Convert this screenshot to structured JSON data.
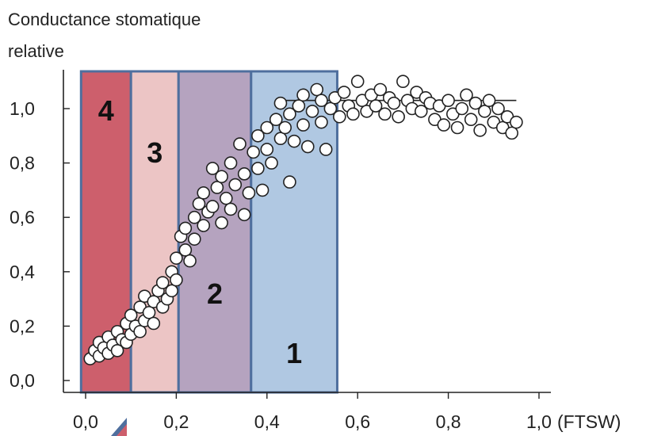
{
  "chart_data": {
    "type": "scatter",
    "title_lines": [
      "Conductance stomatique",
      "relative"
    ],
    "xlabel": "(FTSW)",
    "ylabel": "",
    "xlim": [
      0.0,
      1.0
    ],
    "ylim": [
      0.0,
      1.1
    ],
    "x_ticks": [
      {
        "value": 0.0,
        "label": "0,0"
      },
      {
        "value": 0.2,
        "label": "0,2"
      },
      {
        "value": 0.4,
        "label": "0,4"
      },
      {
        "value": 0.6,
        "label": "0,6"
      },
      {
        "value": 0.8,
        "label": "0,8"
      },
      {
        "value": 1.0,
        "label": "1,0"
      }
    ],
    "y_ticks": [
      {
        "value": 0.0,
        "label": "0,0"
      },
      {
        "value": 0.2,
        "label": "0,2"
      },
      {
        "value": 0.4,
        "label": "0,4"
      },
      {
        "value": 0.6,
        "label": "0,6"
      },
      {
        "value": 0.8,
        "label": "0,8"
      },
      {
        "value": 1.0,
        "label": "1,0"
      }
    ],
    "grid": false,
    "zones": [
      {
        "label": "4",
        "x_from": -0.01,
        "x_to": 0.1,
        "color": "#cd5f6c"
      },
      {
        "label": "3",
        "x_from": 0.1,
        "x_to": 0.205,
        "color": "#ecc5c5"
      },
      {
        "label": "2",
        "x_from": 0.205,
        "x_to": 0.365,
        "color": "#b5a3bf"
      },
      {
        "label": "1",
        "x_from": 0.365,
        "x_to": 0.555,
        "color": "#b0c8e2"
      }
    ],
    "zone_border_color": "#4f6f9e",
    "plateau_line": {
      "x_from": 0.42,
      "x_to": 0.95,
      "y": 1.03
    },
    "points": [
      {
        "x": 0.01,
        "y": 0.08
      },
      {
        "x": 0.02,
        "y": 0.11
      },
      {
        "x": 0.03,
        "y": 0.09
      },
      {
        "x": 0.03,
        "y": 0.14
      },
      {
        "x": 0.04,
        "y": 0.12
      },
      {
        "x": 0.05,
        "y": 0.1
      },
      {
        "x": 0.05,
        "y": 0.16
      },
      {
        "x": 0.06,
        "y": 0.13
      },
      {
        "x": 0.07,
        "y": 0.18
      },
      {
        "x": 0.07,
        "y": 0.11
      },
      {
        "x": 0.08,
        "y": 0.15
      },
      {
        "x": 0.09,
        "y": 0.21
      },
      {
        "x": 0.09,
        "y": 0.14
      },
      {
        "x": 0.1,
        "y": 0.24
      },
      {
        "x": 0.1,
        "y": 0.17
      },
      {
        "x": 0.11,
        "y": 0.2
      },
      {
        "x": 0.12,
        "y": 0.27
      },
      {
        "x": 0.12,
        "y": 0.18
      },
      {
        "x": 0.13,
        "y": 0.31
      },
      {
        "x": 0.13,
        "y": 0.22
      },
      {
        "x": 0.14,
        "y": 0.25
      },
      {
        "x": 0.15,
        "y": 0.29
      },
      {
        "x": 0.15,
        "y": 0.21
      },
      {
        "x": 0.16,
        "y": 0.33
      },
      {
        "x": 0.17,
        "y": 0.27
      },
      {
        "x": 0.17,
        "y": 0.36
      },
      {
        "x": 0.18,
        "y": 0.3
      },
      {
        "x": 0.19,
        "y": 0.4
      },
      {
        "x": 0.19,
        "y": 0.33
      },
      {
        "x": 0.2,
        "y": 0.45
      },
      {
        "x": 0.2,
        "y": 0.37
      },
      {
        "x": 0.21,
        "y": 0.53
      },
      {
        "x": 0.22,
        "y": 0.48
      },
      {
        "x": 0.22,
        "y": 0.56
      },
      {
        "x": 0.23,
        "y": 0.44
      },
      {
        "x": 0.24,
        "y": 0.6
      },
      {
        "x": 0.24,
        "y": 0.52
      },
      {
        "x": 0.25,
        "y": 0.65
      },
      {
        "x": 0.26,
        "y": 0.57
      },
      {
        "x": 0.26,
        "y": 0.69
      },
      {
        "x": 0.27,
        "y": 0.62
      },
      {
        "x": 0.28,
        "y": 0.78
      },
      {
        "x": 0.28,
        "y": 0.64
      },
      {
        "x": 0.29,
        "y": 0.71
      },
      {
        "x": 0.3,
        "y": 0.58
      },
      {
        "x": 0.3,
        "y": 0.75
      },
      {
        "x": 0.31,
        "y": 0.67
      },
      {
        "x": 0.32,
        "y": 0.8
      },
      {
        "x": 0.32,
        "y": 0.63
      },
      {
        "x": 0.33,
        "y": 0.72
      },
      {
        "x": 0.34,
        "y": 0.87
      },
      {
        "x": 0.35,
        "y": 0.61
      },
      {
        "x": 0.35,
        "y": 0.76
      },
      {
        "x": 0.36,
        "y": 0.69
      },
      {
        "x": 0.37,
        "y": 0.84
      },
      {
        "x": 0.38,
        "y": 0.78
      },
      {
        "x": 0.38,
        "y": 0.9
      },
      {
        "x": 0.39,
        "y": 0.7
      },
      {
        "x": 0.4,
        "y": 0.85
      },
      {
        "x": 0.4,
        "y": 0.93
      },
      {
        "x": 0.41,
        "y": 0.8
      },
      {
        "x": 0.42,
        "y": 0.96
      },
      {
        "x": 0.43,
        "y": 0.89
      },
      {
        "x": 0.43,
        "y": 1.02
      },
      {
        "x": 0.44,
        "y": 0.93
      },
      {
        "x": 0.45,
        "y": 0.73
      },
      {
        "x": 0.45,
        "y": 0.98
      },
      {
        "x": 0.46,
        "y": 0.88
      },
      {
        "x": 0.47,
        "y": 1.01
      },
      {
        "x": 0.48,
        "y": 0.94
      },
      {
        "x": 0.48,
        "y": 1.05
      },
      {
        "x": 0.49,
        "y": 0.86
      },
      {
        "x": 0.5,
        "y": 0.99
      },
      {
        "x": 0.51,
        "y": 1.07
      },
      {
        "x": 0.52,
        "y": 0.95
      },
      {
        "x": 0.52,
        "y": 1.03
      },
      {
        "x": 0.53,
        "y": 0.85
      },
      {
        "x": 0.54,
        "y": 1.0
      },
      {
        "x": 0.55,
        "y": 1.04
      },
      {
        "x": 0.56,
        "y": 0.97
      },
      {
        "x": 0.57,
        "y": 1.06
      },
      {
        "x": 0.58,
        "y": 1.01
      },
      {
        "x": 0.59,
        "y": 0.98
      },
      {
        "x": 0.6,
        "y": 1.1
      },
      {
        "x": 0.61,
        "y": 1.03
      },
      {
        "x": 0.62,
        "y": 0.99
      },
      {
        "x": 0.63,
        "y": 1.05
      },
      {
        "x": 0.64,
        "y": 1.01
      },
      {
        "x": 0.65,
        "y": 1.07
      },
      {
        "x": 0.66,
        "y": 0.98
      },
      {
        "x": 0.67,
        "y": 1.04
      },
      {
        "x": 0.68,
        "y": 1.02
      },
      {
        "x": 0.69,
        "y": 0.97
      },
      {
        "x": 0.7,
        "y": 1.1
      },
      {
        "x": 0.71,
        "y": 1.03
      },
      {
        "x": 0.72,
        "y": 1.0
      },
      {
        "x": 0.73,
        "y": 1.06
      },
      {
        "x": 0.74,
        "y": 0.99
      },
      {
        "x": 0.75,
        "y": 1.04
      },
      {
        "x": 0.76,
        "y": 1.02
      },
      {
        "x": 0.77,
        "y": 0.96
      },
      {
        "x": 0.78,
        "y": 1.01
      },
      {
        "x": 0.79,
        "y": 0.94
      },
      {
        "x": 0.8,
        "y": 1.03
      },
      {
        "x": 0.81,
        "y": 0.98
      },
      {
        "x": 0.82,
        "y": 0.93
      },
      {
        "x": 0.83,
        "y": 1.0
      },
      {
        "x": 0.84,
        "y": 1.05
      },
      {
        "x": 0.85,
        "y": 0.96
      },
      {
        "x": 0.86,
        "y": 1.02
      },
      {
        "x": 0.87,
        "y": 0.92
      },
      {
        "x": 0.88,
        "y": 0.99
      },
      {
        "x": 0.89,
        "y": 1.03
      },
      {
        "x": 0.9,
        "y": 0.95
      },
      {
        "x": 0.91,
        "y": 1.0
      },
      {
        "x": 0.92,
        "y": 0.93
      },
      {
        "x": 0.93,
        "y": 0.97
      },
      {
        "x": 0.94,
        "y": 0.91
      },
      {
        "x": 0.95,
        "y": 0.95
      }
    ]
  }
}
